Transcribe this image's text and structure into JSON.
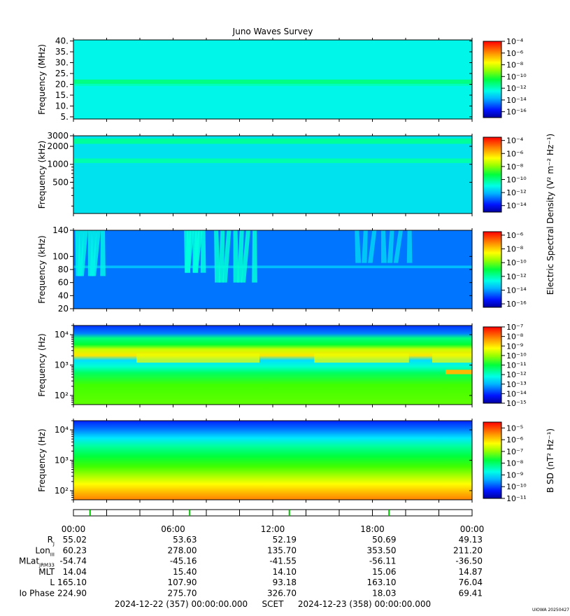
{
  "title": "Juno Waves Survey",
  "footer": {
    "start": "2024-12-22 (357) 00:00:00.000",
    "frame": "SCET",
    "end": "2024-12-23 (358) 00:00:00.000",
    "credit": "UIOWA 20250427"
  },
  "colorbar_labels": {
    "electric": "Electric Spectral Density (V² m⁻² Hz⁻¹)",
    "magnetic": "B SD (nT² Hz⁻¹)"
  },
  "ephemeris": {
    "times": [
      "00:00",
      "06:00",
      "12:00",
      "18:00",
      "00:00"
    ],
    "rows": [
      {
        "label": "Rj",
        "values": [
          "55.02",
          "53.63",
          "52.19",
          "50.69",
          "49.13"
        ]
      },
      {
        "label": "LonIII",
        "values": [
          "60.23",
          "278.00",
          "135.70",
          "353.50",
          "211.20"
        ]
      },
      {
        "label": "MLatJRM33",
        "values": [
          "-54.74",
          "-45.16",
          "-41.55",
          "-56.11",
          "-36.50"
        ]
      },
      {
        "label": "MLT",
        "values": [
          "14.04",
          "15.40",
          "14.10",
          "15.06",
          "14.87"
        ]
      },
      {
        "label": "L",
        "values": [
          "165.10",
          "107.90",
          "93.18",
          "163.10",
          "76.04"
        ]
      },
      {
        "label": "Io Phase",
        "values": [
          "224.90",
          "275.70",
          "326.70",
          "18.03",
          "69.41"
        ]
      }
    ]
  },
  "chart_data": [
    {
      "type": "heatmap",
      "panel": 1,
      "title": "Juno Waves Survey",
      "ylabel": "Frequency (MHz)",
      "yscale": "linear",
      "ylim": [
        4,
        40.5
      ],
      "yticks": [
        5,
        10,
        15,
        20,
        25,
        30,
        35,
        40
      ],
      "yticklabels": [
        "5.",
        "10.",
        "15.",
        "20.",
        "25.",
        "30.",
        "35.",
        "40."
      ],
      "xlim_hours": [
        0,
        24
      ],
      "colorbar": {
        "exponents": [
          -4,
          -6,
          -8,
          -10,
          -12,
          -14,
          -16
        ],
        "range_exp": [
          -17,
          -4
        ],
        "label_ref": "electric"
      },
      "background_exp": -12.6,
      "features": [
        {
          "kind": "band",
          "freq_range": [
            20.2,
            22.2
          ],
          "level_exp": -11.3
        },
        {
          "kind": "band",
          "freq_range": [
            19.2,
            20.2
          ],
          "level_exp": -12.0
        }
      ]
    },
    {
      "type": "heatmap",
      "panel": 2,
      "ylabel": "Frequency (kHz)",
      "yscale": "log",
      "ylim": [
        150,
        3000
      ],
      "yticks": [
        500,
        1000,
        2000,
        3000
      ],
      "yticklabels": [
        "500",
        "1000",
        "2000",
        "3000"
      ],
      "xlim_hours": [
        0,
        24
      ],
      "colorbar": {
        "exponents": [
          -4,
          -6,
          -8,
          -10,
          -12,
          -14
        ],
        "range_exp": [
          -15,
          -3.5
        ],
        "label_ref": "electric"
      },
      "background_exp": -11.4,
      "features": [
        {
          "kind": "band",
          "freq_range": [
            2200,
            2700
          ],
          "level_exp": -10.2
        },
        {
          "kind": "band",
          "freq_range": [
            1050,
            1250
          ],
          "level_exp": -10.4
        }
      ]
    },
    {
      "type": "heatmap",
      "panel": 3,
      "ylabel": "Frequency (kHz)",
      "yscale": "linear",
      "ylim": [
        20,
        140
      ],
      "yticks": [
        20,
        40,
        60,
        80,
        100,
        140
      ],
      "yticklabels": [
        "20",
        "40",
        "60",
        "80",
        "100",
        "140"
      ],
      "xlim_hours": [
        0,
        24
      ],
      "colorbar": {
        "exponents": [
          -6,
          -8,
          -10,
          -12,
          -14,
          -16
        ],
        "range_exp": [
          -16.5,
          -5.5
        ],
        "label_ref": "electric"
      },
      "background_exp": -14.4,
      "features": [
        {
          "kind": "band",
          "freq_range": [
            82,
            86
          ],
          "level_exp": -13.6
        },
        {
          "kind": "burst",
          "t_range": [
            0.1,
            1.9
          ],
          "freq_range": [
            70,
            140
          ],
          "level_exp": -12.8
        },
        {
          "kind": "burst",
          "t_range": [
            6.7,
            7.9
          ],
          "freq_range": [
            75,
            140
          ],
          "level_exp": -12.6
        },
        {
          "kind": "burst",
          "t_range": [
            8.4,
            11.1
          ],
          "freq_range": [
            60,
            140
          ],
          "level_exp": -12.5
        },
        {
          "kind": "burst",
          "t_range": [
            16.8,
            20.5
          ],
          "freq_range": [
            90,
            140
          ],
          "level_exp": -13.3
        }
      ]
    },
    {
      "type": "heatmap",
      "panel": 4,
      "ylabel": "Frequency (Hz)",
      "yscale": "log",
      "ylim": [
        50,
        20000
      ],
      "yticks": [
        100,
        1000,
        10000
      ],
      "yticklabels": [
        "10²",
        "10³",
        "10⁴"
      ],
      "xlim_hours": [
        0,
        24
      ],
      "colorbar": {
        "exponents": [
          -7,
          -8,
          -9,
          -10,
          -11,
          -12,
          -13,
          -14,
          -15
        ],
        "range_exp": [
          -15,
          -7
        ],
        "label_ref": "electric"
      },
      "features": [
        {
          "kind": "band",
          "freq_range": [
            8000,
            20000
          ],
          "level_exp": -14.2
        },
        {
          "kind": "band",
          "freq_range": [
            2500,
            8000
          ],
          "level_exp": -12.3
        },
        {
          "kind": "band",
          "freq_range": [
            1100,
            2500
          ],
          "level_exp": -10.4
        },
        {
          "kind": "band",
          "freq_range": [
            700,
            1100
          ],
          "level_exp": -12.6
        },
        {
          "kind": "band",
          "freq_range": [
            250,
            700
          ],
          "level_exp": -12.0
        },
        {
          "kind": "band",
          "freq_range": [
            50,
            250
          ],
          "level_exp": -11.0
        }
      ]
    },
    {
      "type": "heatmap",
      "panel": 5,
      "ylabel": "Frequency (Hz)",
      "yscale": "log",
      "ylim": [
        50,
        20000
      ],
      "yticks": [
        100,
        1000,
        10000
      ],
      "yticklabels": [
        "10²",
        "10³",
        "10⁴"
      ],
      "xlim_hours": [
        0,
        24
      ],
      "colorbar": {
        "exponents": [
          -5,
          -6,
          -7,
          -8,
          -9,
          -10,
          -11
        ],
        "range_exp": [
          -11,
          -4.5
        ],
        "label_ref": "magnetic"
      },
      "features": [
        {
          "kind": "gradient",
          "freq": 20000,
          "level_exp": -11
        },
        {
          "kind": "gradient",
          "freq": 8000,
          "level_exp": -10.6
        },
        {
          "kind": "gradient",
          "freq": 4000,
          "level_exp": -9.8
        },
        {
          "kind": "gradient",
          "freq": 1500,
          "level_exp": -8.5
        },
        {
          "kind": "gradient",
          "freq": 400,
          "level_exp": -7.6
        },
        {
          "kind": "gradient",
          "freq": 150,
          "level_exp": -6.3
        },
        {
          "kind": "gradient",
          "freq": 50,
          "level_exp": -5.5
        }
      ]
    }
  ],
  "timeline": {
    "xlim_hours": [
      0,
      24
    ],
    "green_marks_hours": [
      1,
      7,
      13,
      19
    ],
    "minor_every_hours": 2
  }
}
